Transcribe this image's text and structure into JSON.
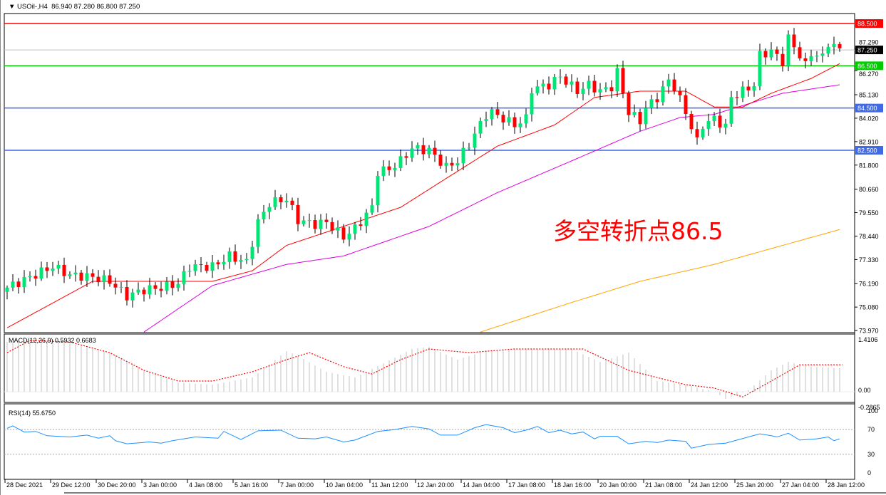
{
  "header": {
    "symbol": "USOil-,H4",
    "ohlc": "86.940 87.280 86.800 87.250"
  },
  "annotation": "多空转折点86.5",
  "colors": {
    "bull": "#00e676",
    "bear": "#ff0000",
    "ma_fast": "#ff0000",
    "ma_mid": "#e000e0",
    "ma_slow": "#ffa500",
    "macd_hist": "#c0c0c0",
    "macd_signal": "#ff0000",
    "rsi": "#1e90ff"
  },
  "levels": [
    {
      "price": 88.5,
      "label": "88.500",
      "color": "#ff0000"
    },
    {
      "price": 87.25,
      "label": "87.250",
      "color": "#c0c0c0",
      "tag": "#000000"
    },
    {
      "price": 86.5,
      "label": "86.500",
      "color": "#00cc00"
    },
    {
      "price": 84.5,
      "label": "84.500",
      "color": "#4169e1"
    },
    {
      "price": 82.5,
      "label": "82.500",
      "color": "#4169e1"
    }
  ],
  "chart_data": {
    "type": "candlestick",
    "price_ticks": [
      "87.290",
      "86.270",
      "85.130",
      "84.020",
      "82.910",
      "81.800",
      "80.660",
      "79.550",
      "78.440",
      "77.330",
      "76.190",
      "75.080",
      "73.970"
    ],
    "ylim": [
      73.97,
      88.9
    ],
    "x_labels": [
      "28 Dec 2021",
      "29 Dec 12:00",
      "30 Dec 20:00",
      "3 Jan 00:00",
      "4 Jan 08:00",
      "5 Jan 16:00",
      "7 Jan 00:00",
      "10 Jan 04:00",
      "11 Jan 12:00",
      "12 Jan 20:00",
      "14 Jan 04:00",
      "17 Jan 08:00",
      "18 Jan 16:00",
      "20 Jan 00:00",
      "21 Jan 08:00",
      "24 Jan 12:00",
      "25 Jan 20:00",
      "27 Jan 04:00",
      "28 Jan 12:00"
    ],
    "candle_count": 147,
    "close_path": [
      [
        0,
        76.0
      ],
      [
        8,
        77.0
      ],
      [
        11,
        76.6
      ],
      [
        15,
        76.5
      ],
      [
        18,
        76.3
      ],
      [
        21,
        75.6
      ],
      [
        24,
        75.9
      ],
      [
        27,
        76.0
      ],
      [
        30,
        76.2
      ],
      [
        32,
        77.0
      ],
      [
        36,
        77.0
      ],
      [
        39,
        77.5
      ],
      [
        42,
        77.2
      ],
      [
        44,
        79.1
      ],
      [
        46,
        80.0
      ],
      [
        49,
        80.2
      ],
      [
        51,
        79.2
      ],
      [
        54,
        79.0
      ],
      [
        56,
        79.1
      ],
      [
        59,
        78.4
      ],
      [
        61,
        78.8
      ],
      [
        64,
        79.8
      ],
      [
        65,
        81.5
      ],
      [
        67,
        81.6
      ],
      [
        69,
        82.0
      ],
      [
        71,
        82.6
      ],
      [
        74,
        82.5
      ],
      [
        77,
        81.7
      ],
      [
        79,
        82.0
      ],
      [
        81,
        82.8
      ],
      [
        84,
        84.2
      ],
      [
        85,
        84.3
      ],
      [
        87,
        84.0
      ],
      [
        89,
        83.7
      ],
      [
        91,
        84.0
      ],
      [
        92,
        85.4
      ],
      [
        95,
        85.6
      ],
      [
        97,
        86.0
      ],
      [
        100,
        85.3
      ],
      [
        102,
        85.6
      ],
      [
        104,
        85.3
      ],
      [
        106,
        85.5
      ],
      [
        107,
        86.2
      ],
      [
        109,
        84.3
      ],
      [
        111,
        83.9
      ],
      [
        112,
        84.5
      ],
      [
        114,
        85.0
      ],
      [
        116,
        85.8
      ],
      [
        117,
        85.5
      ],
      [
        119,
        84.3
      ],
      [
        121,
        82.9
      ],
      [
        122,
        83.7
      ],
      [
        124,
        84.0
      ],
      [
        126,
        83.6
      ],
      [
        127,
        85.0
      ],
      [
        129,
        85.3
      ],
      [
        131,
        85.6
      ],
      [
        132,
        87.0
      ],
      [
        134,
        87.2
      ],
      [
        136,
        86.7
      ],
      [
        137,
        87.8
      ],
      [
        139,
        87.0
      ],
      [
        140,
        86.5
      ],
      [
        141,
        87.1
      ],
      [
        143,
        86.9
      ],
      [
        144,
        87.6
      ],
      [
        146,
        87.25
      ]
    ],
    "ma_fast": [
      [
        0,
        74.1
      ],
      [
        15,
        76.3
      ],
      [
        36,
        76.3
      ],
      [
        43,
        76.8
      ],
      [
        49,
        78.0
      ],
      [
        59,
        78.9
      ],
      [
        69,
        79.8
      ],
      [
        76,
        81.0
      ],
      [
        86,
        82.7
      ],
      [
        96,
        83.7
      ],
      [
        103,
        85.0
      ],
      [
        111,
        85.3
      ],
      [
        119,
        85.3
      ],
      [
        124,
        84.55
      ],
      [
        129,
        84.55
      ],
      [
        134,
        85.2
      ],
      [
        141,
        85.9
      ],
      [
        146,
        86.6
      ]
    ],
    "ma_mid": [
      [
        24,
        73.9
      ],
      [
        36,
        76.1
      ],
      [
        49,
        77.1
      ],
      [
        59,
        77.5
      ],
      [
        74,
        78.9
      ],
      [
        86,
        80.5
      ],
      [
        99,
        82.0
      ],
      [
        111,
        83.4
      ],
      [
        118,
        84.05
      ],
      [
        124,
        84.2
      ],
      [
        130,
        84.7
      ],
      [
        136,
        85.2
      ],
      [
        146,
        85.6
      ]
    ],
    "ma_slow": [
      [
        83,
        73.9
      ],
      [
        99,
        75.3
      ],
      [
        111,
        76.3
      ],
      [
        124,
        77.1
      ],
      [
        136,
        78.0
      ],
      [
        146,
        78.75
      ]
    ],
    "macd": {
      "label": "MACD(12,26,9) 0.5932 0.6683",
      "ticks": [
        "1.4106",
        "0.00",
        "-0.2865"
      ],
      "hist": [
        [
          0,
          1.35
        ],
        [
          4,
          1.41
        ],
        [
          11,
          1.31
        ],
        [
          18,
          1.06
        ],
        [
          24,
          0.58
        ],
        [
          30,
          0.25
        ],
        [
          36,
          0.19
        ],
        [
          43,
          0.39
        ],
        [
          49,
          1.1
        ],
        [
          51,
          0.97
        ],
        [
          56,
          0.54
        ],
        [
          61,
          0.39
        ],
        [
          66,
          0.77
        ],
        [
          71,
          1.16
        ],
        [
          74,
          1.22
        ],
        [
          79,
          0.87
        ],
        [
          84,
          1.12
        ],
        [
          89,
          1.16
        ],
        [
          99,
          1.16
        ],
        [
          104,
          0.81
        ],
        [
          109,
          1.06
        ],
        [
          114,
          0.29
        ],
        [
          119,
          0.19
        ],
        [
          124,
          0.0
        ],
        [
          126,
          -0.19
        ],
        [
          130,
          0.04
        ],
        [
          134,
          0.58
        ],
        [
          137,
          0.81
        ],
        [
          141,
          0.68
        ],
        [
          146,
          0.64
        ]
      ],
      "signal": [
        [
          0,
          1.06
        ],
        [
          4,
          1.39
        ],
        [
          11,
          1.35
        ],
        [
          18,
          1.06
        ],
        [
          24,
          0.58
        ],
        [
          30,
          0.29
        ],
        [
          36,
          0.29
        ],
        [
          43,
          0.54
        ],
        [
          49,
          0.87
        ],
        [
          53,
          1.06
        ],
        [
          59,
          0.68
        ],
        [
          64,
          0.48
        ],
        [
          69,
          0.87
        ],
        [
          74,
          1.16
        ],
        [
          81,
          1.06
        ],
        [
          89,
          1.16
        ],
        [
          101,
          1.16
        ],
        [
          109,
          0.58
        ],
        [
          119,
          0.19
        ],
        [
          124,
          0.1
        ],
        [
          129,
          -0.14
        ],
        [
          134,
          0.29
        ],
        [
          139,
          0.73
        ],
        [
          146,
          0.73
        ]
      ]
    },
    "rsi": {
      "label": "RSI(14) 55.6750",
      "ticks": [
        "100",
        "70",
        "30",
        "0"
      ],
      "levels": [
        70,
        30
      ],
      "values": [
        [
          0,
          72
        ],
        [
          1,
          76
        ],
        [
          3,
          66
        ],
        [
          5,
          67
        ],
        [
          7,
          60
        ],
        [
          11,
          58
        ],
        [
          14,
          61
        ],
        [
          16,
          56
        ],
        [
          18,
          60
        ],
        [
          19,
          52
        ],
        [
          21,
          47
        ],
        [
          25,
          50
        ],
        [
          27,
          48
        ],
        [
          29,
          52
        ],
        [
          33,
          58
        ],
        [
          35,
          57
        ],
        [
          37,
          56
        ],
        [
          38,
          67
        ],
        [
          41,
          54
        ],
        [
          44,
          68
        ],
        [
          48,
          69
        ],
        [
          51,
          56
        ],
        [
          54,
          55
        ],
        [
          56,
          58
        ],
        [
          59,
          50
        ],
        [
          61,
          53
        ],
        [
          65,
          67
        ],
        [
          68,
          70
        ],
        [
          71,
          75
        ],
        [
          74,
          71
        ],
        [
          76,
          61
        ],
        [
          79,
          61
        ],
        [
          82,
          73
        ],
        [
          84,
          78
        ],
        [
          87,
          73
        ],
        [
          89,
          65
        ],
        [
          91,
          69
        ],
        [
          93,
          75
        ],
        [
          95,
          65
        ],
        [
          97,
          69
        ],
        [
          99,
          63
        ],
        [
          101,
          66
        ],
        [
          103,
          55
        ],
        [
          104,
          59
        ],
        [
          107,
          59
        ],
        [
          109,
          47
        ],
        [
          112,
          51
        ],
        [
          114,
          49
        ],
        [
          116,
          53
        ],
        [
          119,
          51
        ],
        [
          120,
          40
        ],
        [
          123,
          46
        ],
        [
          126,
          48
        ],
        [
          128,
          53
        ],
        [
          132,
          63
        ],
        [
          134,
          60
        ],
        [
          135,
          58
        ],
        [
          137,
          64
        ],
        [
          139,
          53
        ],
        [
          142,
          55
        ],
        [
          144,
          58
        ],
        [
          145,
          52
        ],
        [
          146,
          55
        ]
      ]
    }
  }
}
